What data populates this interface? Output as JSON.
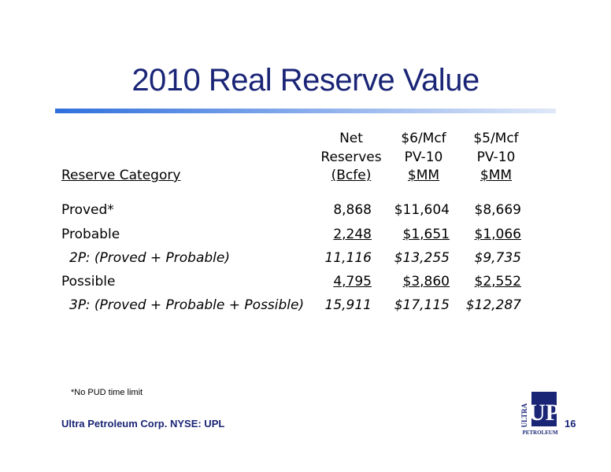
{
  "slide": {
    "title": "2010 Real Reserve Value"
  },
  "table": {
    "headers": {
      "category": "Reserve Category",
      "net": [
        "Net",
        "Reserves",
        "(Bcfe)"
      ],
      "six": [
        "$6/Mcf",
        "PV-10",
        "$MM"
      ],
      "five": [
        "$5/Mcf",
        "PV-10",
        "$MM"
      ]
    },
    "rows": [
      {
        "category": "Proved*",
        "net": "8,868",
        "six": "$11,604",
        "five": "$8,669"
      },
      {
        "category": "Probable",
        "net": "2,248",
        "six": "$1,651",
        "five": "$1,066"
      },
      {
        "category": "2P: (Proved + Probable)",
        "net": "11,116",
        "six": "$13,255",
        "five": "$9,735"
      },
      {
        "category": "Possible",
        "net": "4,795",
        "six": "$3,860",
        "five": "$2,552"
      },
      {
        "category": "3P: (Proved + Probable + Possible)",
        "net": "15,911",
        "six": "$17,115",
        "five": "$12,287"
      }
    ]
  },
  "footnote": "*No PUD time limit",
  "footer": {
    "company": "Ultra Petroleum Corp. NYSE: UPL",
    "page_number": "16"
  },
  "logo": {
    "top_text": "ULTRA",
    "mark": "UP",
    "bottom_text": "PETROLEUM",
    "color": "#1a2576"
  }
}
